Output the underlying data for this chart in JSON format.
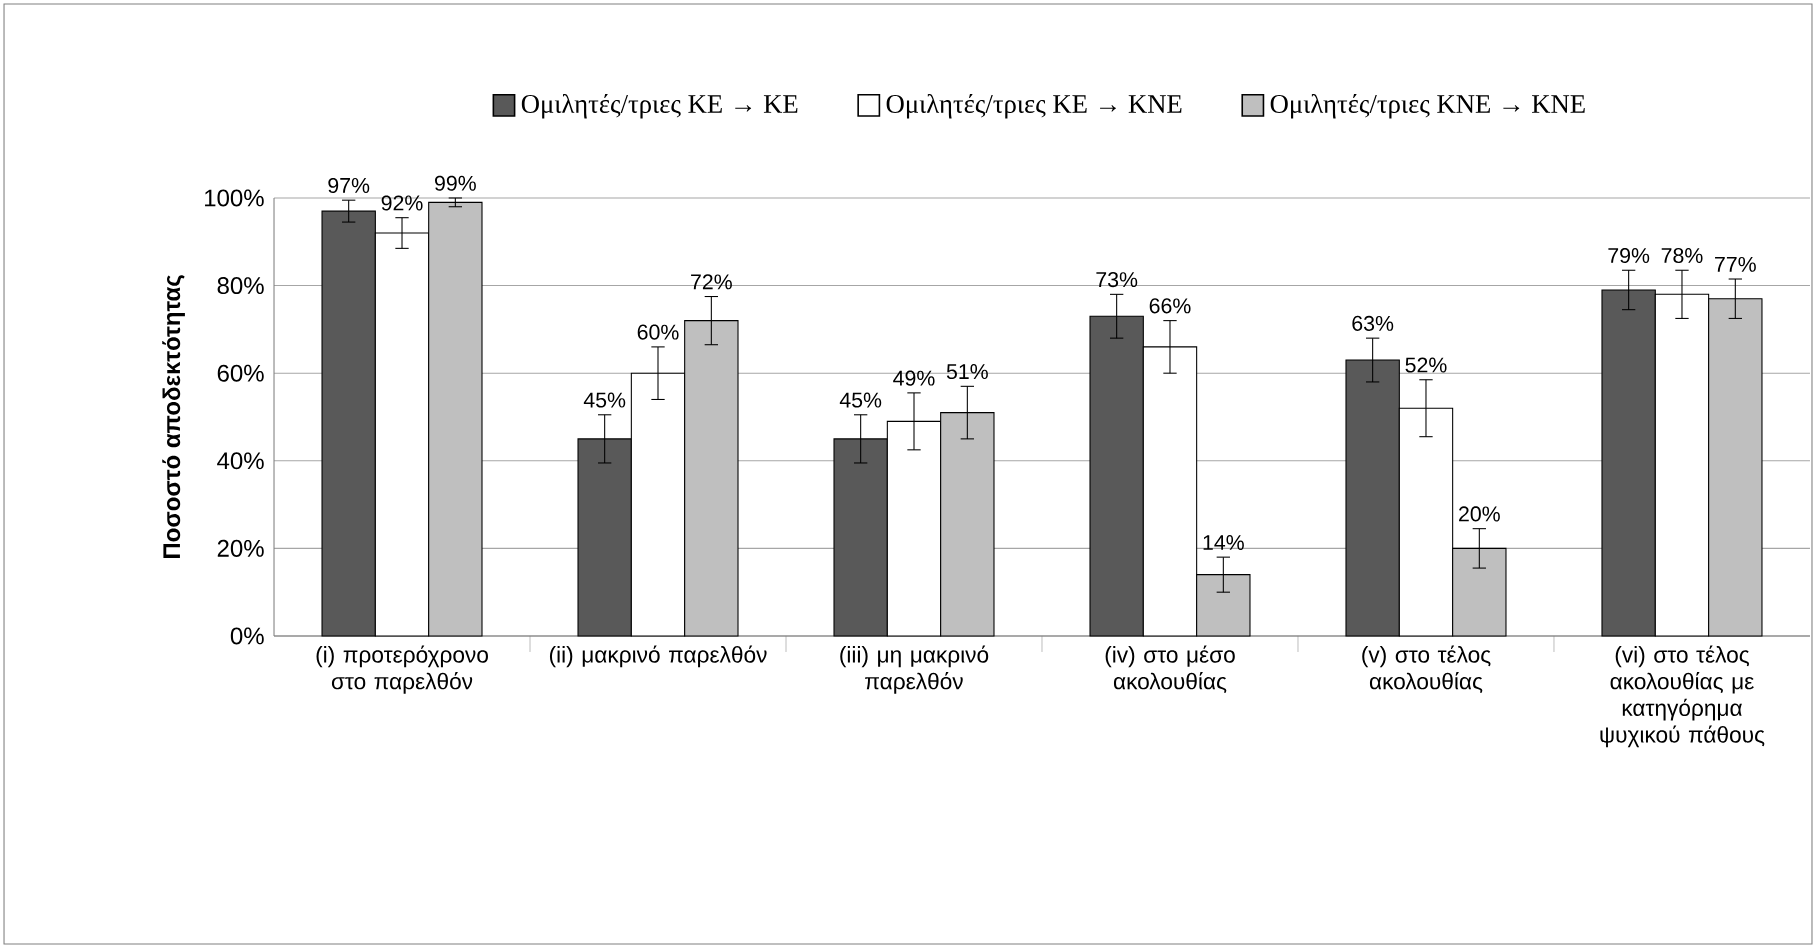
{
  "chart_data": {
    "type": "bar",
    "ylabel": "Ποσοστό αποδεκτότητας",
    "categories": [
      "(i) προτερόχρονο στο παρελθόν",
      "(ii) μακρινό παρελθόν",
      "(iii) μη μακρινό παρελθόν",
      "(iv) στο μέσο ακολουθίας",
      "(v) στο τέλος ακολουθίας",
      "(vi) στο τέλος ακολουθίας με κατηγόρημα ψυχικού πάθους"
    ],
    "series": [
      {
        "name": "Ομιλητές/τριες ΚΕ → ΚΕ",
        "color": "#595959",
        "values": [
          97,
          45,
          45,
          73,
          63,
          79
        ],
        "errors": [
          2.5,
          5.5,
          5.5,
          5,
          5,
          4.5
        ],
        "value_labels": [
          "97%",
          "45%",
          "45%",
          "73%",
          "63%",
          "79%"
        ]
      },
      {
        "name": "Ομιλητές/τριες ΚΕ → ΚΝΕ",
        "color": "#ffffff",
        "values": [
          92,
          60,
          49,
          66,
          52,
          78
        ],
        "errors": [
          3.5,
          6,
          6.5,
          6,
          6.5,
          5.5
        ],
        "value_labels": [
          "92%",
          "60%",
          "49%",
          "66%",
          "52%",
          "78%"
        ]
      },
      {
        "name": "Ομιλητές/τριες ΚΝΕ → ΚΝΕ",
        "color": "#bfbfbf",
        "values": [
          99,
          72,
          51,
          14,
          20,
          77
        ],
        "errors": [
          1,
          5.5,
          6,
          4,
          4.5,
          4.5
        ],
        "value_labels": [
          "99%",
          "72%",
          "51%",
          "14%",
          "20%",
          "77%"
        ]
      }
    ],
    "ylim": [
      0,
      100
    ],
    "yticks": [
      {
        "value": 0,
        "label": "0%"
      },
      {
        "value": 20,
        "label": "20%"
      },
      {
        "value": 40,
        "label": "40%"
      },
      {
        "value": 60,
        "label": "60%"
      },
      {
        "value": 80,
        "label": "80%"
      },
      {
        "value": 100,
        "label": "100%"
      }
    ],
    "grid": "y",
    "legend": "top"
  }
}
